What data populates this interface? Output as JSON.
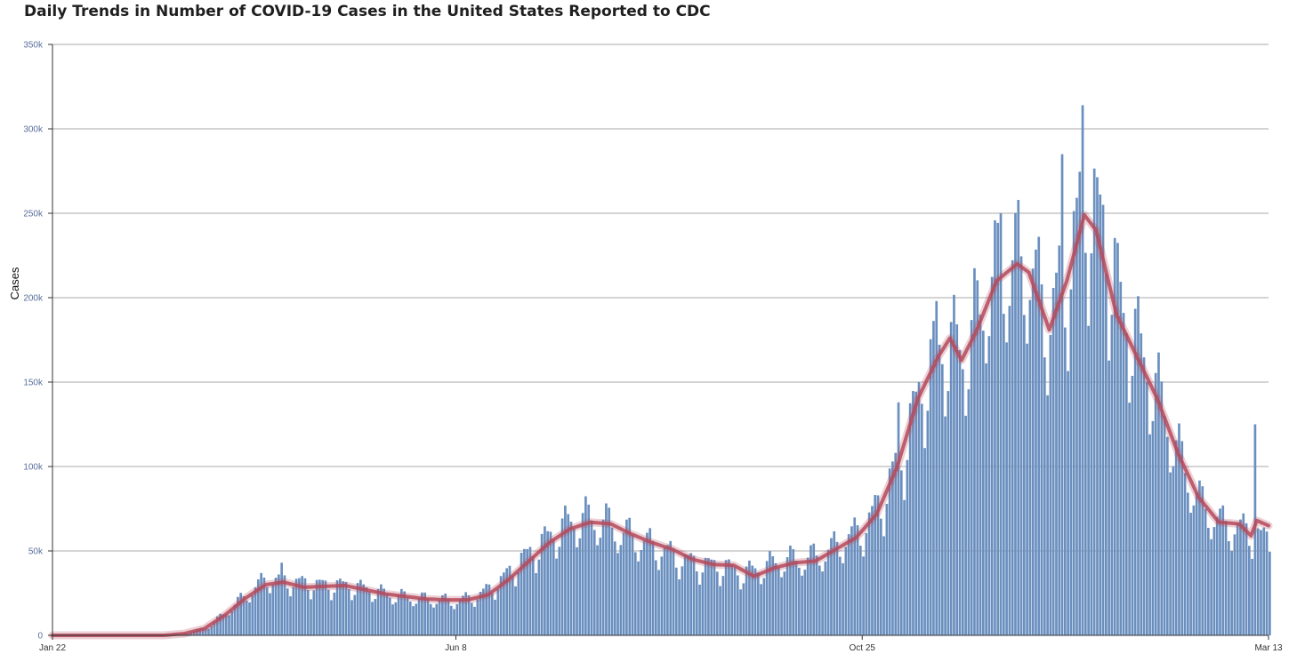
{
  "chart_data": {
    "type": "bar",
    "title": "Daily Trends in Number of COVID-19 Cases in the United States Reported to CDC",
    "xlabel": "",
    "ylabel": "Cases",
    "ylim": [
      0,
      350000
    ],
    "y_ticks": [
      {
        "value": 0,
        "label": "0"
      },
      {
        "value": 50000,
        "label": "50k"
      },
      {
        "value": 100000,
        "label": "100k"
      },
      {
        "value": 150000,
        "label": "150k"
      },
      {
        "value": 200000,
        "label": "200k"
      },
      {
        "value": 250000,
        "label": "250k"
      },
      {
        "value": 300000,
        "label": "300k"
      },
      {
        "value": 350000,
        "label": "350k"
      }
    ],
    "x_range": [
      "2020-01-22",
      "2021-03-13"
    ],
    "x_ticks": [
      {
        "date": "2020-01-22",
        "label": "Jan 22"
      },
      {
        "date": "2020-06-08",
        "label": "Jun 8"
      },
      {
        "date": "2020-10-25",
        "label": "Oct 25"
      },
      {
        "date": "2021-03-13",
        "label": "Mar 13"
      }
    ],
    "grid": true,
    "bar_color": "#6a8fbf",
    "line_color": "#b5495b",
    "series": [
      {
        "kind": "bar",
        "points": [
          [
            "2020-01-22",
            0
          ],
          [
            "2020-02-20",
            0
          ],
          [
            "2020-03-01",
            200
          ],
          [
            "2020-03-08",
            1500
          ],
          [
            "2020-03-15",
            5000
          ],
          [
            "2020-03-22",
            15000
          ],
          [
            "2020-03-29",
            25000
          ],
          [
            "2020-04-04",
            33000
          ],
          [
            "2020-04-10",
            32000
          ],
          [
            "2020-04-17",
            30000
          ],
          [
            "2020-04-24",
            29000
          ],
          [
            "2020-05-01",
            29000
          ],
          [
            "2020-05-08",
            27000
          ],
          [
            "2020-05-15",
            24000
          ],
          [
            "2020-05-22",
            22000
          ],
          [
            "2020-05-29",
            21000
          ],
          [
            "2020-06-08",
            20000
          ],
          [
            "2020-06-15",
            23000
          ],
          [
            "2020-06-22",
            30000
          ],
          [
            "2020-06-29",
            42000
          ],
          [
            "2020-07-06",
            52000
          ],
          [
            "2020-07-13",
            62000
          ],
          [
            "2020-07-20",
            68000
          ],
          [
            "2020-07-27",
            67000
          ],
          [
            "2020-08-03",
            60000
          ],
          [
            "2020-08-10",
            55000
          ],
          [
            "2020-08-17",
            50000
          ],
          [
            "2020-08-24",
            44000
          ],
          [
            "2020-08-31",
            41000
          ],
          [
            "2020-09-07",
            40000
          ],
          [
            "2020-09-14",
            36000
          ],
          [
            "2020-09-21",
            40000
          ],
          [
            "2020-09-28",
            44000
          ],
          [
            "2020-10-05",
            44000
          ],
          [
            "2020-10-12",
            48000
          ],
          [
            "2020-10-19",
            56000
          ],
          [
            "2020-10-25",
            62000
          ],
          [
            "2020-11-01",
            80000
          ],
          [
            "2020-11-08",
            110000
          ],
          [
            "2020-11-15",
            150000
          ],
          [
            "2020-11-22",
            170000
          ],
          [
            "2020-11-29",
            165000
          ],
          [
            "2020-12-06",
            200000
          ],
          [
            "2020-12-13",
            215000
          ],
          [
            "2020-12-20",
            218000
          ],
          [
            "2020-12-27",
            185000
          ],
          [
            "2021-01-03",
            210000
          ],
          [
            "2021-01-07",
            245000
          ],
          [
            "2021-01-10",
            250000
          ],
          [
            "2021-01-14",
            240000
          ],
          [
            "2021-01-21",
            195000
          ],
          [
            "2021-01-28",
            165000
          ],
          [
            "2021-02-04",
            135000
          ],
          [
            "2021-02-11",
            100000
          ],
          [
            "2021-02-18",
            75000
          ],
          [
            "2021-02-25",
            65000
          ],
          [
            "2021-03-04",
            62000
          ],
          [
            "2021-03-13",
            55000
          ]
        ],
        "spikes": [
          [
            "2020-04-09",
            43000
          ],
          [
            "2020-11-06",
            138000
          ],
          [
            "2020-11-19",
            198000
          ],
          [
            "2020-12-11",
            250000
          ],
          [
            "2021-01-01",
            285000
          ],
          [
            "2021-01-08",
            314000
          ],
          [
            "2021-01-22",
            191000
          ],
          [
            "2021-03-08",
            125000
          ]
        ]
      },
      {
        "kind": "line",
        "name": "",
        "points": [
          [
            "2020-01-22",
            0
          ],
          [
            "2020-02-29",
            0
          ],
          [
            "2020-03-07",
            1000
          ],
          [
            "2020-03-14",
            4000
          ],
          [
            "2020-03-21",
            12000
          ],
          [
            "2020-03-28",
            22000
          ],
          [
            "2020-04-04",
            30000
          ],
          [
            "2020-04-10",
            31500
          ],
          [
            "2020-04-17",
            28500
          ],
          [
            "2020-04-24",
            29000
          ],
          [
            "2020-05-01",
            29500
          ],
          [
            "2020-05-08",
            27000
          ],
          [
            "2020-05-15",
            24500
          ],
          [
            "2020-05-22",
            23000
          ],
          [
            "2020-05-29",
            21500
          ],
          [
            "2020-06-05",
            21000
          ],
          [
            "2020-06-12",
            21000
          ],
          [
            "2020-06-19",
            24000
          ],
          [
            "2020-06-26",
            33000
          ],
          [
            "2020-07-03",
            44000
          ],
          [
            "2020-07-10",
            55000
          ],
          [
            "2020-07-17",
            63000
          ],
          [
            "2020-07-24",
            67000
          ],
          [
            "2020-07-31",
            66000
          ],
          [
            "2020-08-07",
            60000
          ],
          [
            "2020-08-14",
            55000
          ],
          [
            "2020-08-21",
            51000
          ],
          [
            "2020-08-28",
            45000
          ],
          [
            "2020-09-04",
            42000
          ],
          [
            "2020-09-11",
            41500
          ],
          [
            "2020-09-18",
            35000
          ],
          [
            "2020-09-25",
            40000
          ],
          [
            "2020-10-02",
            43000
          ],
          [
            "2020-10-09",
            44000
          ],
          [
            "2020-10-16",
            51000
          ],
          [
            "2020-10-23",
            58000
          ],
          [
            "2020-10-30",
            72000
          ],
          [
            "2020-11-06",
            100000
          ],
          [
            "2020-11-13",
            140000
          ],
          [
            "2020-11-20",
            165000
          ],
          [
            "2020-11-24",
            176000
          ],
          [
            "2020-11-28",
            163000
          ],
          [
            "2020-12-03",
            180000
          ],
          [
            "2020-12-10",
            210000
          ],
          [
            "2020-12-17",
            220000
          ],
          [
            "2020-12-21",
            215000
          ],
          [
            "2020-12-28",
            181000
          ],
          [
            "2021-01-03",
            210000
          ],
          [
            "2021-01-09",
            249000
          ],
          [
            "2021-01-13",
            240000
          ],
          [
            "2021-01-20",
            190000
          ],
          [
            "2021-01-27",
            165000
          ],
          [
            "2021-02-03",
            140000
          ],
          [
            "2021-02-10",
            108000
          ],
          [
            "2021-02-17",
            82000
          ],
          [
            "2021-02-24",
            67000
          ],
          [
            "2021-03-03",
            66000
          ],
          [
            "2021-03-07",
            59000
          ],
          [
            "2021-03-09",
            68000
          ],
          [
            "2021-03-13",
            65000
          ]
        ]
      }
    ]
  }
}
